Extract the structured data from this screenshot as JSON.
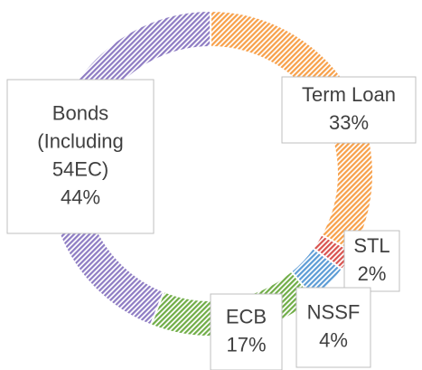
{
  "chart_data": {
    "type": "donut",
    "categories": [
      "Term Loan",
      "STL",
      "NSSF",
      "ECB",
      "Bonds (Including 54EC)"
    ],
    "values": [
      33,
      2,
      4,
      17,
      44
    ],
    "value_labels": [
      "33%",
      "2%",
      "4%",
      "17%",
      "44%"
    ],
    "colors": [
      "#f7a04a",
      "#d9534f",
      "#5b9bd5",
      "#70ad47",
      "#8e7cc3"
    ]
  }
}
